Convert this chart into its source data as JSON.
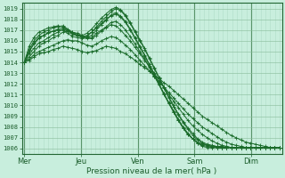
{
  "xlabel": "Pression niveau de la mer( hPa )",
  "ylim": [
    1005.5,
    1019.5
  ],
  "yticks": [
    1006,
    1007,
    1008,
    1009,
    1010,
    1011,
    1012,
    1013,
    1014,
    1015,
    1016,
    1017,
    1018,
    1019
  ],
  "xtick_labels": [
    "Mer",
    "Jeu",
    "Ven",
    "Sam",
    "Dim"
  ],
  "xtick_positions": [
    0,
    24,
    48,
    72,
    96
  ],
  "xlim": [
    -1,
    109
  ],
  "bg_color": "#c8eedd",
  "grid_color_minor": "#b0ddc8",
  "grid_color_major": "#88bb99",
  "line_color": "#1a6b2a",
  "vline_color": "#226633",
  "series": [
    [
      1014.0,
      1014.2,
      1014.5,
      1014.8,
      1014.9,
      1015.0,
      1015.2,
      1015.3,
      1015.5,
      1015.4,
      1015.3,
      1015.2,
      1015.0,
      1014.9,
      1015.0,
      1015.1,
      1015.3,
      1015.5,
      1015.4,
      1015.3,
      1015.0,
      1014.8,
      1014.5,
      1014.2,
      1013.8,
      1013.5,
      1013.2,
      1012.8,
      1012.5,
      1012.1,
      1011.8,
      1011.4,
      1011.0,
      1010.6,
      1010.2,
      1009.8,
      1009.4,
      1009.0,
      1008.7,
      1008.4,
      1008.1,
      1007.8,
      1007.5,
      1007.2,
      1007.0,
      1006.8,
      1006.6,
      1006.5,
      1006.4,
      1006.3,
      1006.2,
      1006.1,
      1006.1,
      1006.1
    ],
    [
      1014.0,
      1014.3,
      1014.7,
      1015.0,
      1015.2,
      1015.4,
      1015.6,
      1015.8,
      1016.0,
      1016.1,
      1016.0,
      1016.0,
      1015.8,
      1015.6,
      1015.5,
      1015.7,
      1016.0,
      1016.2,
      1016.4,
      1016.3,
      1016.0,
      1015.6,
      1015.2,
      1014.7,
      1014.2,
      1013.7,
      1013.2,
      1012.7,
      1012.2,
      1011.7,
      1011.2,
      1010.7,
      1010.2,
      1009.7,
      1009.2,
      1008.8,
      1008.4,
      1008.0,
      1007.7,
      1007.4,
      1007.1,
      1006.8,
      1006.6,
      1006.4,
      1006.3,
      1006.2,
      1006.1,
      1006.1,
      1006.1,
      1006.1,
      1006.1,
      1006.1,
      1006.1,
      1006.1
    ],
    [
      1014.0,
      1014.5,
      1015.0,
      1015.5,
      1015.8,
      1016.0,
      1016.3,
      1016.5,
      1016.8,
      1016.9,
      1016.8,
      1016.7,
      1016.5,
      1016.3,
      1016.2,
      1016.5,
      1016.9,
      1017.2,
      1017.5,
      1017.4,
      1017.0,
      1016.5,
      1016.0,
      1015.4,
      1014.8,
      1014.2,
      1013.6,
      1013.0,
      1012.3,
      1011.7,
      1011.0,
      1010.4,
      1009.8,
      1009.2,
      1008.6,
      1008.1,
      1007.7,
      1007.3,
      1007.0,
      1006.7,
      1006.5,
      1006.3,
      1006.2,
      1006.1,
      1006.1,
      1006.1,
      1006.1,
      1006.1,
      1006.1,
      1006.1,
      1006.1,
      1006.1,
      1006.1,
      1006.1
    ],
    [
      1014.0,
      1014.8,
      1015.3,
      1015.8,
      1016.0,
      1016.3,
      1016.6,
      1016.8,
      1017.1,
      1016.9,
      1016.6,
      1016.5,
      1016.3,
      1016.2,
      1016.3,
      1016.7,
      1017.0,
      1017.3,
      1017.7,
      1017.8,
      1017.5,
      1017.0,
      1016.4,
      1015.7,
      1015.0,
      1014.3,
      1013.5,
      1012.7,
      1011.9,
      1011.1,
      1010.3,
      1009.5,
      1008.7,
      1008.0,
      1007.4,
      1006.9,
      1006.5,
      1006.2,
      1006.1,
      1006.1,
      1006.1,
      1006.1,
      1006.1,
      1006.1,
      1006.1,
      1006.1,
      1006.1,
      1006.1,
      1006.1,
      1006.1,
      1006.1,
      1006.1,
      1006.1,
      1006.1
    ],
    [
      1014.0,
      1015.0,
      1015.7,
      1016.2,
      1016.5,
      1016.7,
      1016.9,
      1017.1,
      1017.2,
      1017.0,
      1016.7,
      1016.5,
      1016.4,
      1016.3,
      1016.5,
      1017.0,
      1017.5,
      1017.9,
      1018.4,
      1018.6,
      1018.3,
      1017.8,
      1017.1,
      1016.3,
      1015.5,
      1014.7,
      1013.8,
      1012.9,
      1012.0,
      1011.1,
      1010.2,
      1009.4,
      1008.6,
      1007.9,
      1007.3,
      1006.9,
      1006.5,
      1006.3,
      1006.2,
      1006.1,
      1006.1,
      1006.1,
      1006.1,
      1006.1,
      1006.1,
      1006.1,
      1006.1,
      1006.1,
      1006.1,
      1006.1,
      1006.1,
      1006.1,
      1006.1,
      1006.1
    ],
    [
      1014.0,
      1015.2,
      1016.0,
      1016.5,
      1016.8,
      1017.0,
      1017.2,
      1017.3,
      1017.4,
      1017.1,
      1016.8,
      1016.6,
      1016.4,
      1016.5,
      1016.8,
      1017.3,
      1017.8,
      1018.2,
      1018.7,
      1019.0,
      1018.8,
      1018.3,
      1017.6,
      1016.8,
      1016.0,
      1015.2,
      1014.3,
      1013.4,
      1012.5,
      1011.6,
      1010.7,
      1009.9,
      1009.1,
      1008.4,
      1007.8,
      1007.2,
      1006.8,
      1006.5,
      1006.3,
      1006.2,
      1006.1,
      1006.1,
      1006.1,
      1006.1,
      1006.1,
      1006.1,
      1006.1,
      1006.1,
      1006.1,
      1006.1,
      1006.1,
      1006.1,
      1006.1,
      1006.1
    ],
    [
      1014.0,
      1015.5,
      1016.3,
      1016.8,
      1017.0,
      1017.2,
      1017.3,
      1017.4,
      1017.3,
      1017.0,
      1016.7,
      1016.5,
      1016.5,
      1016.7,
      1017.1,
      1017.6,
      1018.1,
      1018.5,
      1018.9,
      1019.1,
      1018.9,
      1018.4,
      1017.7,
      1016.9,
      1016.1,
      1015.3,
      1014.4,
      1013.5,
      1012.6,
      1011.7,
      1010.8,
      1010.0,
      1009.2,
      1008.5,
      1007.9,
      1007.4,
      1006.9,
      1006.6,
      1006.4,
      1006.3,
      1006.2,
      1006.2,
      1006.1,
      1006.1,
      1006.1,
      1006.1,
      1006.1,
      1006.1,
      1006.1,
      1006.1,
      1006.1,
      1006.1,
      1006.1,
      1006.1
    ],
    [
      1014.0,
      1015.0,
      1015.8,
      1016.3,
      1016.5,
      1016.8,
      1016.9,
      1017.0,
      1017.0,
      1016.7,
      1016.4,
      1016.3,
      1016.2,
      1016.4,
      1016.8,
      1017.2,
      1017.6,
      1018.0,
      1018.3,
      1018.5,
      1018.2,
      1017.7,
      1017.0,
      1016.2,
      1015.4,
      1014.6,
      1013.7,
      1012.8,
      1011.9,
      1011.0,
      1010.2,
      1009.4,
      1008.6,
      1007.9,
      1007.3,
      1006.9,
      1006.6,
      1006.4,
      1006.3,
      1006.2,
      1006.2,
      1006.1,
      1006.1,
      1006.1,
      1006.1,
      1006.1,
      1006.1,
      1006.1,
      1006.1,
      1006.1,
      1006.1,
      1006.1,
      1006.1,
      1006.1
    ]
  ]
}
